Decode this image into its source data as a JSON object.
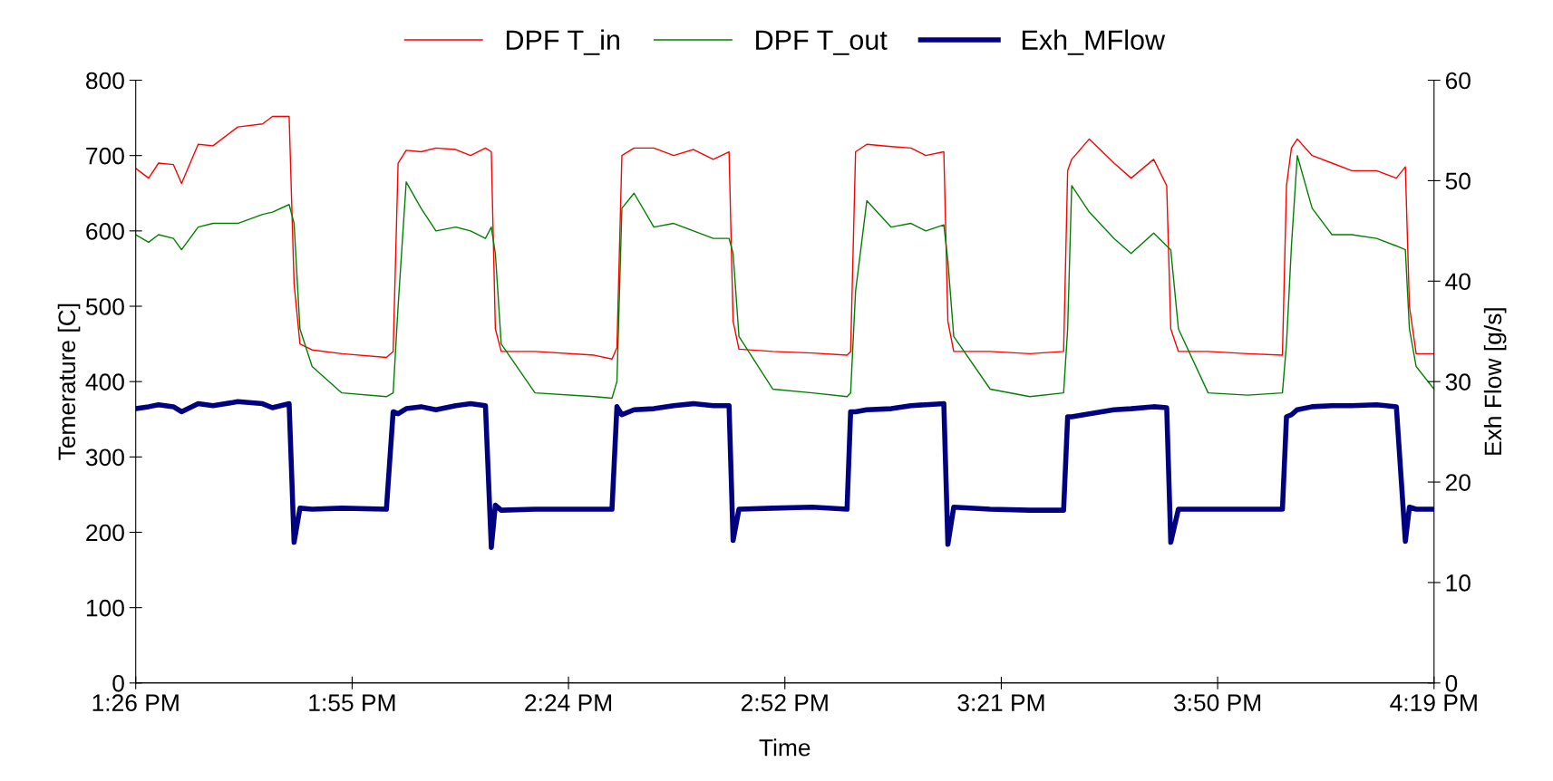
{
  "chart_data": {
    "type": "line",
    "xlabel": "Time",
    "ylabel": "Temerature [C]",
    "y2label": "Exh Flow [g/s]",
    "x": [
      13.4333,
      13.462,
      13.484,
      13.517,
      13.535,
      13.572,
      13.605,
      13.66,
      13.715,
      13.737,
      13.774,
      13.785,
      13.798,
      13.825,
      13.891,
      13.99,
      14.005,
      14.016,
      14.034,
      14.067,
      14.1,
      14.144,
      14.177,
      14.21,
      14.223,
      14.232,
      14.245,
      14.32,
      14.452,
      14.491,
      14.502,
      14.513,
      14.54,
      14.584,
      14.628,
      14.672,
      14.716,
      14.751,
      14.76,
      14.773,
      14.848,
      14.936,
      15.013,
      15.021,
      15.032,
      15.057,
      15.111,
      15.155,
      15.188,
      15.228,
      15.237,
      15.25,
      15.331,
      15.419,
      15.494,
      15.503,
      15.512,
      15.551,
      15.606,
      15.644,
      15.694,
      15.723,
      15.732,
      15.749,
      15.815,
      15.903,
      15.98,
      15.989,
      16.0,
      16.013,
      16.046,
      16.09,
      16.134,
      16.189,
      16.233,
      16.253,
      16.262,
      16.277,
      16.3167
    ],
    "series": [
      {
        "name": "DPF T_in",
        "color": "#ff0000",
        "values": [
          683,
          670,
          690,
          688,
          663,
          715,
          713,
          738,
          742,
          752,
          752,
          530,
          450,
          442,
          437,
          432,
          440,
          690,
          707,
          705,
          710,
          708,
          700,
          710,
          705,
          470,
          440,
          440,
          435,
          430,
          445,
          700,
          710,
          710,
          700,
          708,
          695,
          705,
          480,
          443,
          440,
          438,
          435,
          440,
          705,
          715,
          712,
          710,
          700,
          705,
          480,
          440,
          440,
          437,
          440,
          680,
          695,
          722,
          690,
          670,
          695,
          660,
          470,
          440,
          440,
          437,
          435,
          660,
          710,
          722,
          700,
          690,
          680,
          680,
          670,
          685,
          500,
          437,
          437
        ]
      },
      {
        "name": "DPF T_out",
        "color": "#008000",
        "values": [
          595,
          585,
          595,
          590,
          575,
          605,
          610,
          610,
          622,
          625,
          635,
          610,
          470,
          420,
          385,
          380,
          385,
          500,
          665,
          630,
          600,
          605,
          600,
          590,
          605,
          570,
          450,
          385,
          380,
          378,
          400,
          630,
          650,
          605,
          610,
          600,
          590,
          590,
          570,
          460,
          390,
          385,
          380,
          385,
          520,
          640,
          605,
          610,
          600,
          608,
          560,
          460,
          390,
          380,
          385,
          470,
          660,
          625,
          590,
          570,
          597,
          580,
          575,
          470,
          385,
          382,
          385,
          450,
          580,
          700,
          630,
          595,
          595,
          590,
          580,
          575,
          470,
          420,
          390
        ]
      },
      {
        "name": "Exh_MFlow",
        "color": "#000080",
        "axis": "y2",
        "values": [
          27.3,
          27.5,
          27.7,
          27.5,
          27.0,
          27.8,
          27.6,
          28.0,
          27.8,
          27.4,
          27.8,
          14,
          17.4,
          17.3,
          17.4,
          17.3,
          27.0,
          26.8,
          27.3,
          27.5,
          27.2,
          27.6,
          27.8,
          27.6,
          13.5,
          17.7,
          17.2,
          17.3,
          17.3,
          17.3,
          27.5,
          26.7,
          27.2,
          27.3,
          27.6,
          27.8,
          27.6,
          27.6,
          14.2,
          17.3,
          17.4,
          17.5,
          17.3,
          27.0,
          27.0,
          27.2,
          27.3,
          27.6,
          27.7,
          27.8,
          13.8,
          17.5,
          17.3,
          17.2,
          17.2,
          26.5,
          26.5,
          26.8,
          27.2,
          27.3,
          27.5,
          27.4,
          14.0,
          17.3,
          17.3,
          17.3,
          17.3,
          26.5,
          26.7,
          27.2,
          27.5,
          27.6,
          27.6,
          27.7,
          27.5,
          14.1,
          17.5,
          17.3,
          17.3
        ]
      }
    ],
    "xlim": [
      13.4333,
      16.3167
    ],
    "xticks": [
      {
        "value": 13.4333,
        "label": "1:26 PM"
      },
      {
        "value": 13.9139,
        "label": "1:55 PM"
      },
      {
        "value": 14.3944,
        "label": "2:24 PM"
      },
      {
        "value": 14.875,
        "label": "2:52 PM"
      },
      {
        "value": 15.3556,
        "label": "3:21 PM"
      },
      {
        "value": 15.8361,
        "label": "3:50 PM"
      },
      {
        "value": 16.3167,
        "label": "4:19 PM"
      }
    ],
    "ylim": [
      0,
      800
    ],
    "yticks": [
      0,
      100,
      200,
      300,
      400,
      500,
      600,
      700,
      800
    ],
    "y2lim": [
      0,
      60
    ],
    "y2ticks": [
      0,
      10,
      20,
      30,
      40,
      50,
      60
    ],
    "grid": false,
    "legend": "top",
    "marker": "none",
    "line_style": "solid"
  }
}
